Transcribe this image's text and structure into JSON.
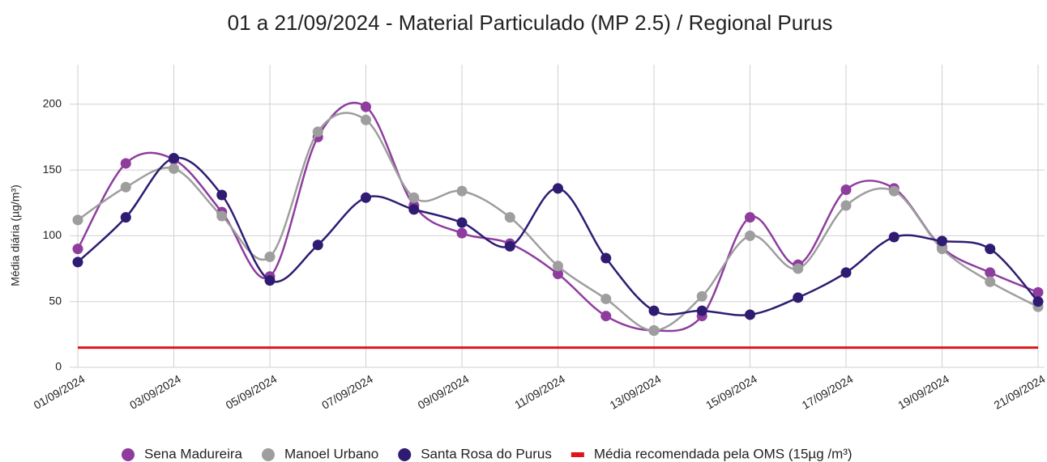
{
  "chart_data": {
    "type": "line",
    "title": "01 a 21/09/2024 - Material Particulado (MP 2.5) / Regional Purus",
    "y_label": "Média diária (µg/m³)",
    "categories": [
      "01/09/2024",
      null,
      "03/09/2024",
      null,
      "05/09/2024",
      null,
      "07/09/2024",
      null,
      "09/09/2024",
      null,
      "11/09/2024",
      null,
      "13/09/2024",
      null,
      "15/09/2024",
      null,
      "17/09/2024",
      null,
      "19/09/2024",
      null,
      "21/09/2024"
    ],
    "ylim": [
      0,
      230
    ],
    "yticks": [
      0,
      50,
      100,
      150,
      200
    ],
    "grid": true,
    "smooth": true,
    "legend": "bottom",
    "series": [
      {
        "name": "Sena Madureira",
        "color": "#8e3d9e",
        "values": [
          90,
          155,
          158,
          118,
          69,
          175,
          198,
          123,
          102,
          94,
          71,
          39,
          28,
          39,
          114,
          78,
          135,
          136,
          91,
          72,
          57
        ]
      },
      {
        "name": "Manoel Urbano",
        "color": "#9e9e9e",
        "values": [
          112,
          137,
          151,
          115,
          84,
          179,
          188,
          129,
          134,
          114,
          77,
          52,
          28,
          54,
          100,
          75,
          123,
          134,
          90,
          65,
          46
        ]
      },
      {
        "name": "Santa Rosa do Purus",
        "color": "#2f1c72",
        "values": [
          80,
          114,
          159,
          131,
          66,
          93,
          129,
          120,
          110,
          92,
          136,
          83,
          43,
          43,
          40,
          53,
          72,
          99,
          96,
          90,
          50
        ]
      },
      {
        "name": "Média recomendada pela OMS (15µg /m³)",
        "color": "#e0141b",
        "markers": false,
        "values": [
          15,
          15,
          15,
          15,
          15,
          15,
          15,
          15,
          15,
          15,
          15,
          15,
          15,
          15,
          15,
          15,
          15,
          15,
          15,
          15,
          15
        ]
      }
    ]
  }
}
